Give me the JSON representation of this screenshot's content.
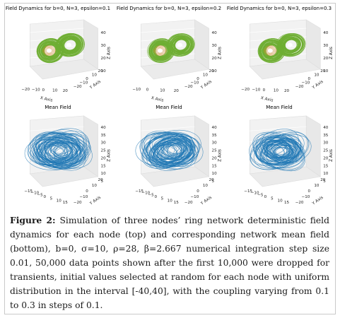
{
  "top_row": [
    {
      "title": "Field Dynamics for b=0, N=3, epsilon=0.1",
      "x_axis_label": "X Axis",
      "y_axis_label": "Y Axis",
      "z_axis_label": "Z Axis",
      "x_ticks": [
        "−20",
        "−10",
        "0",
        "10",
        "20"
      ],
      "y_ticks": [
        "−20",
        "−10",
        "0",
        "10",
        "20"
      ],
      "z_ticks": [
        "10",
        "20",
        "30",
        "40"
      ],
      "attractor_color": "#6fae33"
    },
    {
      "title": "Field Dynamics for b=0, N=3, epsilon=0.2",
      "x_axis_label": "X Axis",
      "y_axis_label": "Y Axis",
      "z_axis_label": "Z Axis",
      "x_ticks": [
        "−10",
        "0",
        "10",
        "20"
      ],
      "y_ticks": [
        "−20",
        "−10",
        "0",
        "10",
        "20"
      ],
      "z_ticks": [
        "10",
        "20",
        "30",
        "40"
      ],
      "attractor_color": "#6fae33"
    },
    {
      "title": "Field Dynamics for b=0, N=3, epsilon=0.3",
      "x_axis_label": "X Axis",
      "y_axis_label": "Y Axis",
      "z_axis_label": "Z Axis",
      "x_ticks": [
        "−20",
        "−10",
        "0",
        "10",
        "20"
      ],
      "y_ticks": [
        "−20",
        "−10",
        "0",
        "10",
        "20"
      ],
      "z_ticks": [
        "10",
        "20",
        "30",
        "40"
      ],
      "attractor_color": "#6fae33"
    }
  ],
  "bottom_row": [
    {
      "title": "Mean Field",
      "x_axis_label": "X Axis",
      "y_axis_label": "Y Axis",
      "z_axis_label": "Z Axis",
      "x_ticks": [
        "−15",
        "−10",
        "−5",
        "0",
        "5",
        "10",
        "15"
      ],
      "y_ticks": [
        "−20",
        "−10",
        "0",
        "10",
        "20"
      ],
      "z_ticks": [
        "5",
        "10",
        "15",
        "20",
        "25",
        "30",
        "35",
        "40"
      ],
      "attractor_color": "#1f77b4"
    },
    {
      "title": "Mean Field",
      "x_axis_label": "X Axis",
      "y_axis_label": "Y Axis",
      "z_axis_label": "Z Axis",
      "x_ticks": [
        "−15",
        "−10",
        "−5",
        "0",
        "5",
        "10",
        "15"
      ],
      "y_ticks": [
        "−20",
        "−10",
        "0",
        "10",
        "20"
      ],
      "z_ticks": [
        "5",
        "10",
        "15",
        "20",
        "25",
        "30",
        "35",
        "40"
      ],
      "attractor_color": "#1f77b4"
    },
    {
      "title": "Mean Field",
      "x_axis_label": "X Axis",
      "y_axis_label": "Y Axis",
      "z_axis_label": "Z Axis",
      "x_ticks": [
        "−15",
        "−10",
        "−5",
        "0",
        "5",
        "10",
        "15"
      ],
      "y_ticks": [
        "−20",
        "−10",
        "0",
        "10",
        "20"
      ],
      "z_ticks": [
        "5",
        "10",
        "15",
        "20",
        "25",
        "30",
        "35",
        "40"
      ],
      "attractor_color": "#1f77b4"
    }
  ],
  "caption": {
    "lead": "Figure 2:",
    "text": " Simulation of three nodes’ ring network deterministic field dynamics for each node (top) and corresponding network mean field (bottom), b=0, σ=10, ρ=28, β=2.667 numerical integration step size 0.01, 50,000 data points shown after the first 10,000 were dropped for transients, initial values selected at random for each node with uniform distribution in the interval [-40,40], with the coupling varying from 0.1 to 0.3 in steps of 0.1."
  }
}
